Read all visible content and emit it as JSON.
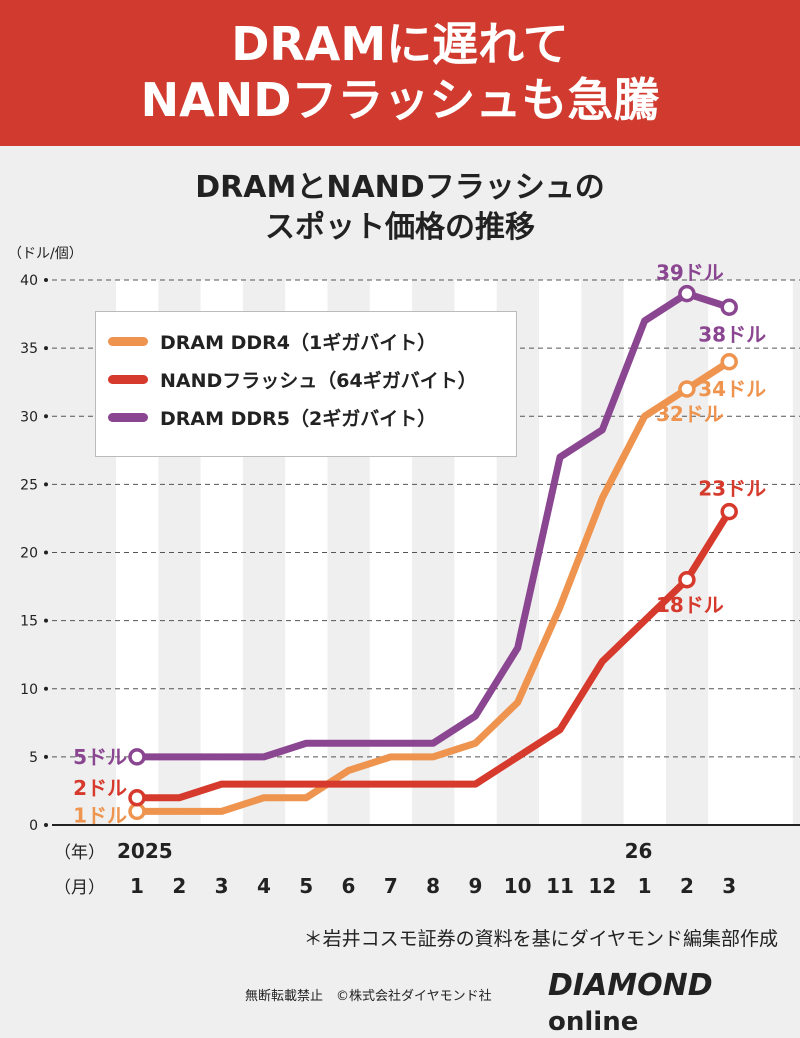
{
  "header": {
    "line1": "DRAMに遅れて",
    "line2": "NANDフラッシュも急騰"
  },
  "subtitle": {
    "line1": "DRAMとNANDフラッシュの",
    "line2": "スポット価格の推移"
  },
  "source": "＊岩井コスモ証券の資料を基にダイヤモンド編集部作成",
  "footer": {
    "rights": "無断転載禁止　©株式会社ダイヤモンド社",
    "logo_main": "DIAMOND",
    "logo_sub": "online"
  },
  "chart_data": {
    "type": "line",
    "ylabel": "（ドル/個）",
    "ylim": [
      0,
      40
    ],
    "yticks": [
      0,
      5,
      10,
      15,
      20,
      25,
      30,
      35,
      40
    ],
    "grid": true,
    "legend": "top-left",
    "x_row_labels": {
      "year": "（年）",
      "month": "（月）"
    },
    "year_labels": [
      {
        "index": 0,
        "text": "2025"
      },
      {
        "index": 12,
        "text": "26"
      }
    ],
    "categories": [
      "1",
      "2",
      "3",
      "4",
      "5",
      "6",
      "7",
      "8",
      "9",
      "10",
      "11",
      "12",
      "1",
      "2",
      "3"
    ],
    "series": [
      {
        "name": "DRAM DDR4（1ギガバイト）",
        "color": "#ee944f",
        "values": [
          1,
          1,
          1,
          2,
          2,
          4,
          5,
          5,
          6,
          9,
          16,
          24,
          30,
          32,
          34
        ],
        "labels": [
          {
            "index": 0,
            "text": "1ドル"
          },
          {
            "index": 13,
            "text": "32ドル"
          },
          {
            "index": 14,
            "text": "34ドル"
          }
        ]
      },
      {
        "name": "NANDフラッシュ（64ギガバイト）",
        "color": "#d63a2c",
        "values": [
          2,
          2,
          3,
          3,
          3,
          3,
          3,
          3,
          3,
          5,
          7,
          12,
          15,
          18,
          23
        ],
        "labels": [
          {
            "index": 0,
            "text": "2ドル"
          },
          {
            "index": 13,
            "text": "18ドル"
          },
          {
            "index": 14,
            "text": "23ドル"
          }
        ]
      },
      {
        "name": "DRAM DDR5（2ギガバイト）",
        "color": "#8a4690",
        "values": [
          5,
          5,
          5,
          5,
          6,
          6,
          6,
          6,
          8,
          13,
          27,
          29,
          37,
          39,
          38
        ],
        "labels": [
          {
            "index": 0,
            "text": "5ドル"
          },
          {
            "index": 13,
            "text": "39ドル"
          },
          {
            "index": 14,
            "text": "38ドル"
          }
        ]
      }
    ]
  }
}
